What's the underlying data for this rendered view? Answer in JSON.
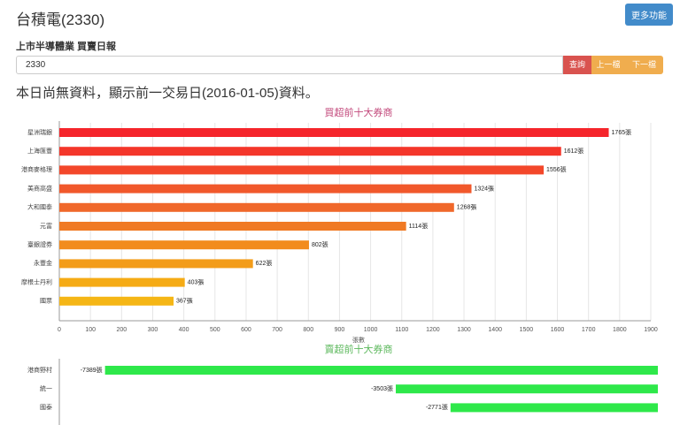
{
  "header": {
    "title": "台積電(2330)",
    "more_button": "更多功能"
  },
  "form": {
    "label": "上市半導體業 買賣日報",
    "input_value": "2330",
    "buttons": [
      "查詢",
      "上一檔",
      "下一檔"
    ]
  },
  "notice": "本日尚無資料，顯示前一交易日(2016-01-05)資料。",
  "chart_data": [
    {
      "type": "hbar",
      "title": "買超前十大券商",
      "title_color": "#c2477a",
      "categories": [
        "星洲瑞銀",
        "上海匯豐",
        "港商麥格理",
        "美商高盛",
        "大和國泰",
        "元富",
        "臺銀證券",
        "永豐金",
        "摩根士丹利",
        "國票"
      ],
      "values": [
        1765,
        1612,
        1556,
        1324,
        1268,
        1114,
        802,
        622,
        403,
        367
      ],
      "value_labels": [
        "1765張",
        "1612張",
        "1556張",
        "1324張",
        "1268張",
        "1114張",
        "802張",
        "622張",
        "403張",
        "367張"
      ],
      "colors": [
        "#f5252b",
        "#f4362a",
        "#f3472a",
        "#f1582b",
        "#f0682b",
        "#f07a24",
        "#f28c1d",
        "#f39c19",
        "#f5ab15",
        "#f5b616"
      ],
      "xlim": [
        0,
        1900
      ],
      "xticks": [
        0,
        100,
        200,
        300,
        400,
        500,
        600,
        700,
        800,
        900,
        1000,
        1100,
        1200,
        1300,
        1400,
        1500,
        1600,
        1700,
        1800,
        1900
      ],
      "xlabel": "張數",
      "grid": true
    },
    {
      "type": "hbar",
      "title": "賣超前十大券商",
      "title_color": "#5cb85c",
      "categories": [
        "港商野村",
        "統一",
        "國泰"
      ],
      "values": [
        -7389,
        -3503,
        -2771
      ],
      "value_labels": [
        "-7389張",
        "-3503張",
        "-2771張"
      ],
      "colors": [
        "#2ee84a",
        "#2ee84a",
        "#2ee84a"
      ],
      "xlim": [
        -8000,
        0
      ]
    }
  ]
}
